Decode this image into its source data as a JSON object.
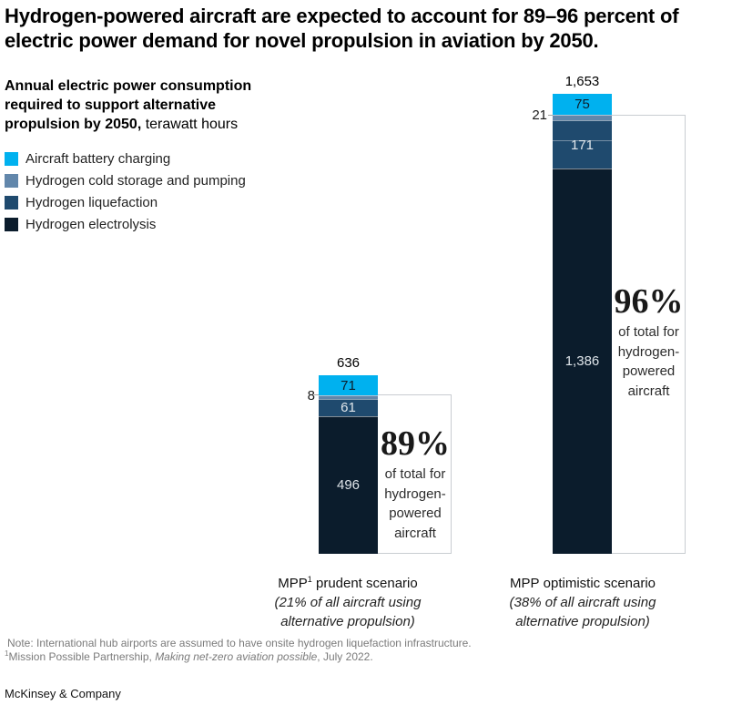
{
  "header": {
    "title_line1": "Hydrogen-powered aircraft are expected to account for 89–96 percent of",
    "title_line2": "electric power demand for novel propulsion in aviation by 2050.",
    "subtitle_bold_line1": "Annual electric power consumption",
    "subtitle_bold_line2": "required to support alternative",
    "subtitle_bold_line3": "propulsion by 2050,",
    "subtitle_regular": " terawatt hours"
  },
  "legend": {
    "items": [
      {
        "label": "Aircraft battery charging",
        "color": "#00b1ef"
      },
      {
        "label": "Hydrogen cold storage and pumping",
        "color": "#6287ab"
      },
      {
        "label": "Hydrogen liquefaction",
        "color": "#1f4a6e"
      },
      {
        "label": "Hydrogen electrolysis",
        "color": "#0b1c2c"
      }
    ]
  },
  "chart_data": {
    "type": "bar",
    "stacked": true,
    "title": "Annual electric power consumption required to support alternative propulsion by 2050, terawatt hours",
    "unit": "terawatt hours",
    "categories": [
      "MPP prudent scenario (21% of all aircraft using alternative propulsion)",
      "MPP optimistic scenario (38% of all aircraft using alternative propulsion)"
    ],
    "series": [
      {
        "name": "Aircraft battery charging",
        "color": "#00b1ef",
        "values": [
          71,
          75
        ]
      },
      {
        "name": "Hydrogen cold storage and pumping",
        "color": "#6287ab",
        "values": [
          8,
          21
        ]
      },
      {
        "name": "Hydrogen liquefaction",
        "color": "#1f4a6e",
        "values": [
          61,
          171
        ]
      },
      {
        "name": "Hydrogen electrolysis",
        "color": "#0b1c2c",
        "values": [
          496,
          1386
        ]
      }
    ],
    "totals": [
      636,
      1653
    ],
    "annotations": [
      "89% of total for hydrogen-powered aircraft",
      "96% of total for hydrogen-powered aircraft"
    ],
    "legend_position": "top-left",
    "grid": false
  },
  "bars": [
    {
      "total": "636",
      "segments": [
        {
          "label": "71"
        },
        {
          "label": ""
        },
        {
          "label": "61"
        },
        {
          "label": "496"
        }
      ],
      "outside_label": "8",
      "callout": {
        "pct": "89%",
        "line1": "of total for",
        "line2": "hydrogen-",
        "line3": "powered",
        "line4": "aircraft"
      },
      "axis": {
        "name": "MPP",
        "sup": "1",
        "name_rest": " prudent scenario",
        "detail1": "(21% of all aircraft using",
        "detail2": "alternative propulsion)"
      }
    },
    {
      "total": "1,653",
      "segments": [
        {
          "label": "75"
        },
        {
          "label": ""
        },
        {
          "label": "171"
        },
        {
          "label": "1,386"
        }
      ],
      "outside_label": "21",
      "callout": {
        "pct": "96%",
        "line1": "of total for",
        "line2": "hydrogen-",
        "line3": "powered",
        "line4": "aircraft"
      },
      "axis": {
        "name": "MPP",
        "sup": "",
        "name_rest": " optimistic scenario",
        "detail1": "(38% of all aircraft using",
        "detail2": "alternative propulsion)"
      }
    }
  ],
  "footer": {
    "note": "Note: International hub airports are assumed to have onsite hydrogen liquefaction infrastructure.",
    "source_sup": "1",
    "source_pre": "Mission Possible Partnership, ",
    "source_italic": "Making net-zero aviation possible",
    "source_post": ", July 2022.",
    "brand": "McKinsey & Company"
  }
}
